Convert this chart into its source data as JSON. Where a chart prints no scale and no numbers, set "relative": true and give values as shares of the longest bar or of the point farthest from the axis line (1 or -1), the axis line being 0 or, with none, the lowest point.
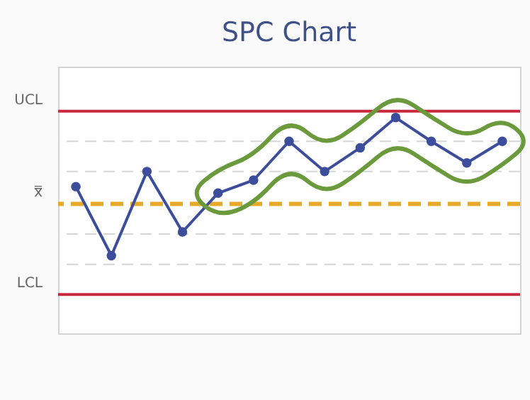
{
  "chart_data": {
    "type": "line",
    "title": "SPC Chart",
    "relative": true,
    "categories": [
      null,
      null,
      null,
      null,
      null,
      null,
      null,
      null,
      null,
      null,
      null,
      null,
      null
    ],
    "series": [
      {
        "color": "#3b4d9b",
        "values": [
          0.68,
          0.36,
          0.75,
          0.47,
          0.65,
          0.71,
          0.89,
          0.75,
          0.86,
          1,
          0.89,
          0.79,
          0.89
        ]
      }
    ],
    "ref_lines": [
      {
        "axis": "y",
        "value": 0.89,
        "color": "#d6d6d6",
        "line_style": "dashed"
      },
      {
        "axis": "y",
        "value": 0.75,
        "color": "#d6d6d6",
        "line_style": "dashed"
      },
      {
        "axis": "y",
        "value": 0.46,
        "color": "#d6d6d6",
        "line_style": "dashed"
      },
      {
        "axis": "y",
        "value": 0.32,
        "color": "#d6d6d6",
        "line_style": "dashed"
      },
      {
        "axis": "y",
        "value": 1.03,
        "label": "UCL",
        "color": "#c8283c",
        "line_style": "solid"
      },
      {
        "axis": "y",
        "value": 0.6,
        "label": "x̿",
        "color": "#e6a92a",
        "line_style": "dashed"
      },
      {
        "axis": "y",
        "value": 0.18,
        "label": "LCL",
        "color": "#c8283c",
        "line_style": "solid"
      }
    ],
    "marker": "circle",
    "line_style": "solid"
  }
}
